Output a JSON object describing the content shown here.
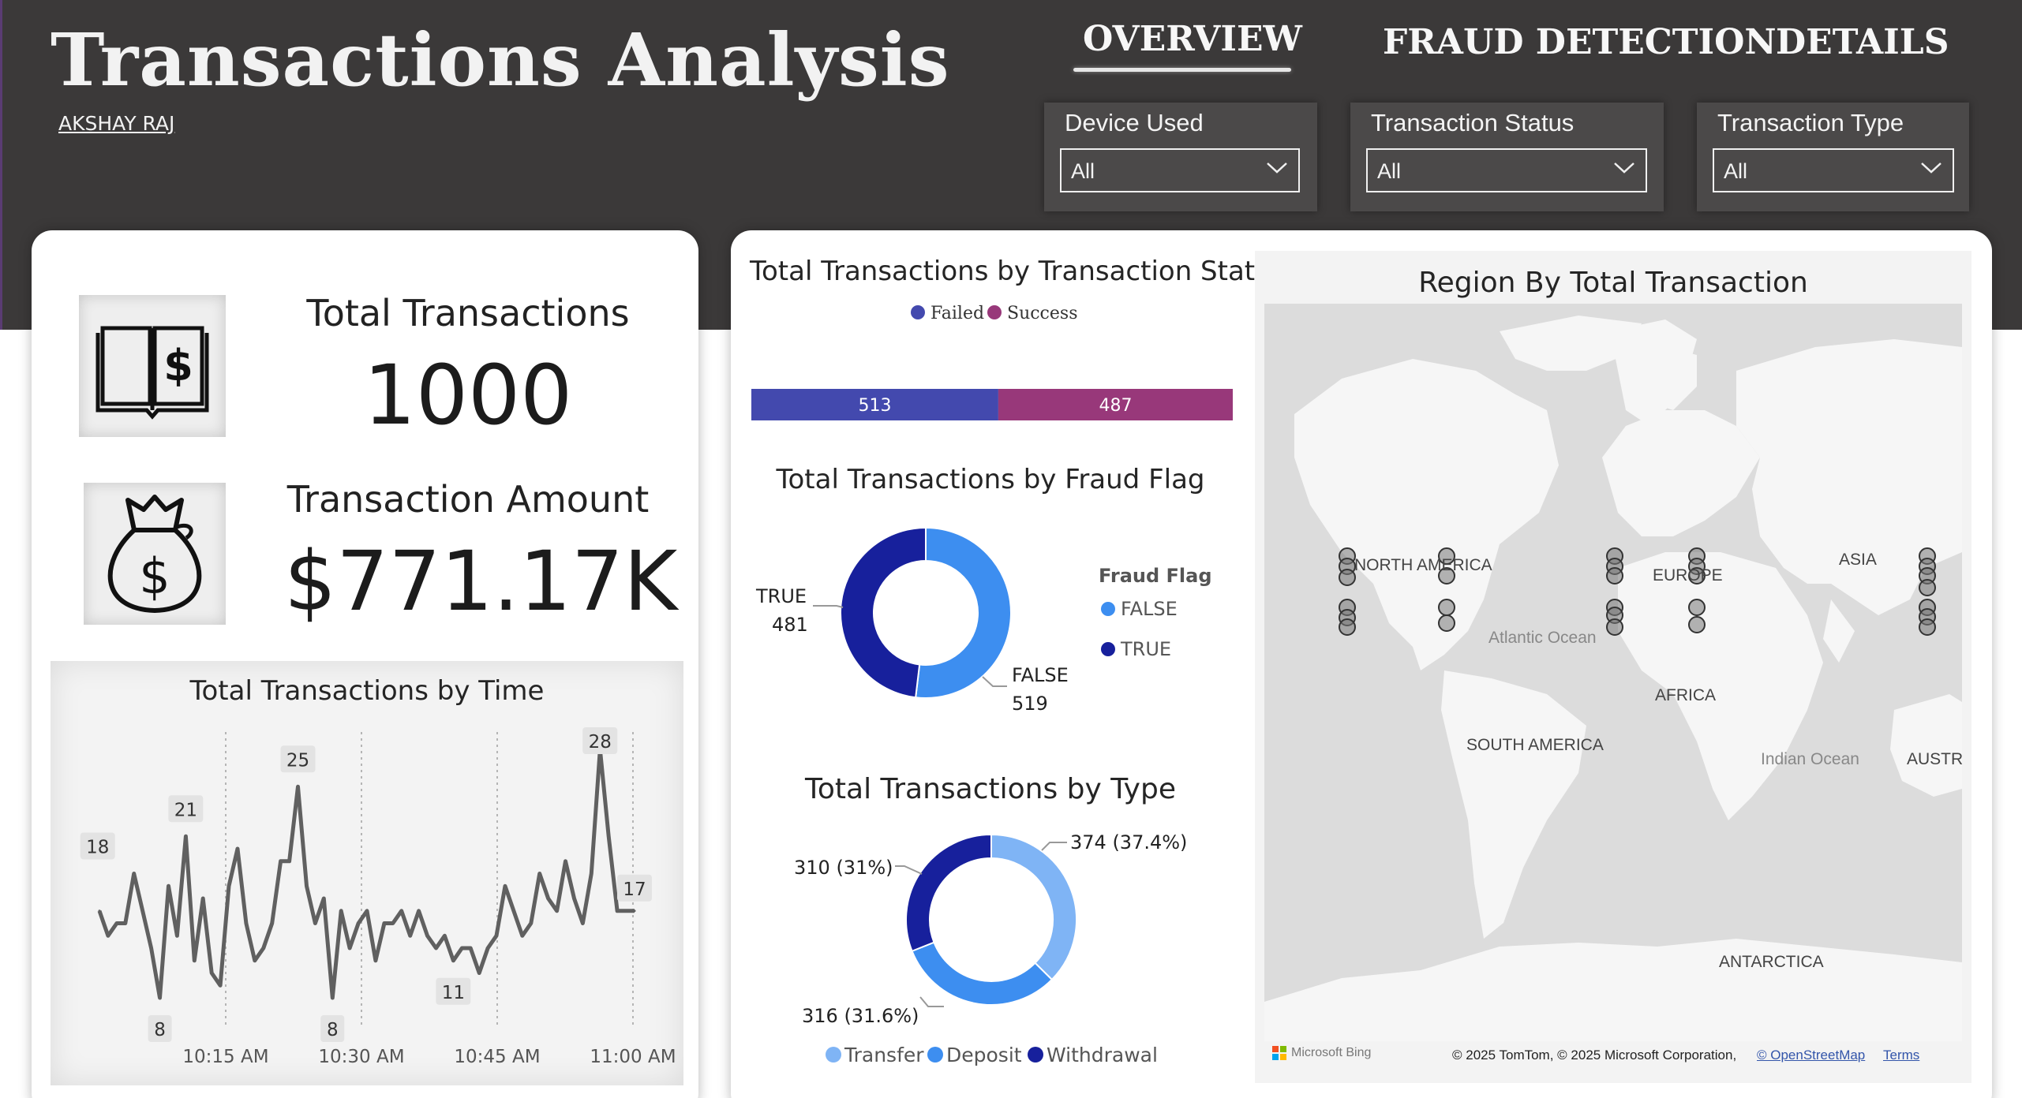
{
  "header": {
    "title": "Transactions Analysis",
    "author": "AKSHAY RAJ"
  },
  "nav": {
    "tabs": [
      {
        "label": "OVERVIEW",
        "active": true
      },
      {
        "label": "FRAUD DETECTION",
        "active": false
      },
      {
        "label": "DETAILS",
        "active": false
      }
    ]
  },
  "filters": [
    {
      "label": "Device Used",
      "value": "All"
    },
    {
      "label": "Transaction Status",
      "value": "All"
    },
    {
      "label": "Transaction Type",
      "value": "All"
    }
  ],
  "kpis": {
    "total_transactions": {
      "label": "Total Transactions",
      "value": "1000",
      "icon": "ledger-dollar-icon"
    },
    "transaction_amount": {
      "label": "Transaction Amount",
      "value": "$771.17K",
      "icon": "money-bag-icon"
    }
  },
  "colors": {
    "header_bg": "#3b3939",
    "failed": "#4349ae",
    "success": "#98387a",
    "fraud_false": "#3d8ef0",
    "fraud_true": "#17209c",
    "transfer": "#7fb4f5",
    "deposit": "#3d8ef0",
    "withdrawal": "#17209c",
    "line": "#606060"
  },
  "chart_data": [
    {
      "type": "line",
      "title": "Total Transactions by Time",
      "x_ticks": [
        "10:15 AM",
        "10:30 AM",
        "10:45 AM",
        "11:00 AM"
      ],
      "x_start": "10:06 AM",
      "x_end": "11:00 AM",
      "y": [
        15,
        13,
        14,
        14,
        18,
        15,
        12,
        8,
        17,
        13,
        21,
        11,
        16,
        10,
        9,
        17,
        20,
        14,
        11,
        12,
        14,
        19,
        19,
        25,
        17,
        14,
        16,
        8,
        15,
        12,
        14,
        15,
        11,
        14,
        14,
        15,
        13,
        15,
        13,
        12,
        13,
        11,
        12,
        12,
        10,
        12,
        13,
        17,
        15,
        13,
        14,
        18,
        16,
        15,
        19,
        16,
        14,
        18,
        28,
        21,
        15,
        15,
        15
      ],
      "data_labels": [
        {
          "text": "18"
        },
        {
          "text": "21"
        },
        {
          "text": "8"
        },
        {
          "text": "25"
        },
        {
          "text": "8"
        },
        {
          "text": "11"
        },
        {
          "text": "28"
        },
        {
          "text": "17"
        }
      ]
    },
    {
      "type": "bar",
      "title": "Total Transactions by Transaction Status",
      "orientation": "horizontal-stacked",
      "legend": [
        "Failed",
        "Success"
      ],
      "series": [
        {
          "name": "Failed",
          "values": [
            513
          ]
        },
        {
          "name": "Success",
          "values": [
            487
          ]
        }
      ]
    },
    {
      "type": "pie",
      "title": "Total Transactions by Fraud Flag",
      "style": "donut",
      "legend_title": "Fraud Flag",
      "legend": [
        "FALSE",
        "TRUE"
      ],
      "slices": [
        {
          "label": "FALSE",
          "value": 519
        },
        {
          "label": "TRUE",
          "value": 481
        }
      ]
    },
    {
      "type": "pie",
      "title": "Total Transactions by Type",
      "style": "donut",
      "legend": [
        "Transfer",
        "Deposit",
        "Withdrawal"
      ],
      "slices": [
        {
          "label": "Transfer",
          "value": 374,
          "text": "374 (37.4%)"
        },
        {
          "label": "Deposit",
          "value": 316,
          "text": "316 (31.6%)"
        },
        {
          "label": "Withdrawal",
          "value": 310,
          "text": "310 (31%)"
        }
      ]
    }
  ],
  "map": {
    "title": "Region By Total Transaction",
    "labels": [
      "NORTH AMERICA",
      "EUROPE",
      "ASIA",
      "Atlantic Ocean",
      "AFRICA",
      "SOUTH AMERICA",
      "Indian Ocean",
      "AUSTR",
      "ANTARCTICA"
    ],
    "bing": "Microsoft Bing",
    "attribution": "© 2025 TomTom, © 2025 Microsoft Corporation,",
    "osm_link": "© OpenStreetMap",
    "terms_link": "Terms"
  }
}
